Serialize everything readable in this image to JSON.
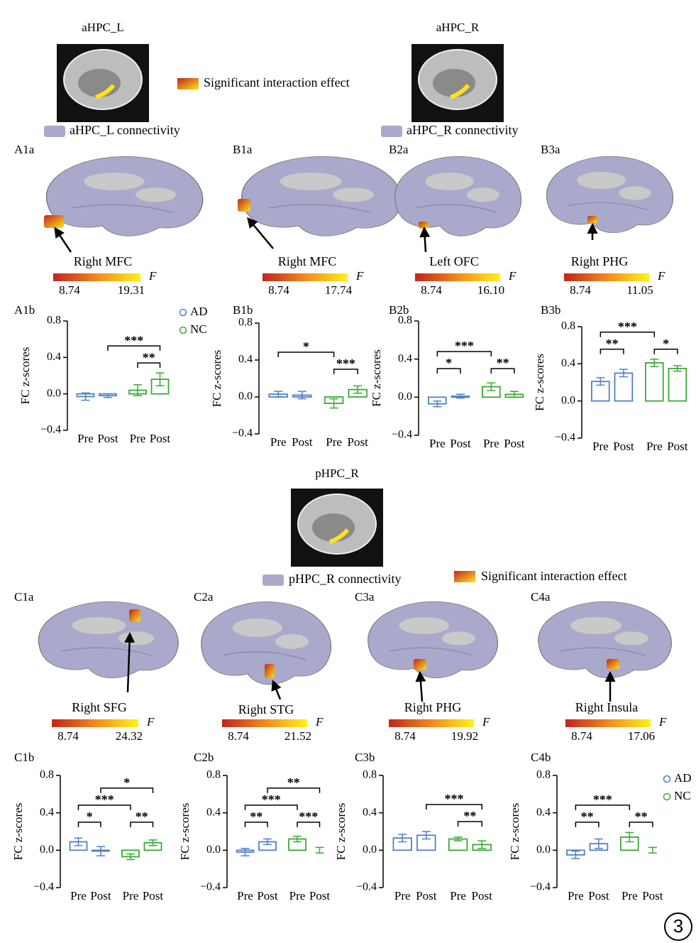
{
  "header": {
    "seeds": [
      "aHPC_L",
      "aHPC_R",
      "pHPC_R"
    ],
    "interaction_legend": [
      "Significant interaction effect",
      "Significant interaction effect"
    ],
    "connectivity_legend": [
      "aHPC_L connectivity",
      "aHPC_R connectivity",
      "pHPC_R connectivity"
    ],
    "figure_number": 3
  },
  "brain_panels": [
    {
      "panel": "A1a",
      "region": "Right MFC",
      "colorbar": {
        "min": 8.74,
        "max": 19.31,
        "label": "F"
      }
    },
    {
      "panel": "B1a",
      "region": "Right MFC",
      "colorbar": {
        "min": 8.74,
        "max": 17.74,
        "label": "F"
      }
    },
    {
      "panel": "B2a",
      "region": "Left OFC",
      "colorbar": {
        "min": 8.74,
        "max": {
          "value": 16.1,
          "label": "16.10"
        },
        "label": "F"
      }
    },
    {
      "panel": "B3a",
      "region": "Right PHG",
      "colorbar": {
        "min": 8.74,
        "max": 11.05,
        "label": "F"
      }
    },
    {
      "panel": "C1a",
      "region": "Right SFG",
      "colorbar": {
        "min": 8.74,
        "max": 24.32,
        "label": "F"
      }
    },
    {
      "panel": "C2a",
      "region": "Right STG",
      "colorbar": {
        "min": 8.74,
        "max": 21.52,
        "label": "F"
      }
    },
    {
      "panel": "C3a",
      "region": "Right PHG",
      "colorbar": {
        "min": 8.74,
        "max": 19.92,
        "label": "F"
      }
    },
    {
      "panel": "C4a",
      "region": "Right Insula",
      "colorbar": {
        "min": 8.74,
        "max": 17.06,
        "label": "F"
      }
    }
  ],
  "chart_data": [
    {
      "type": "bar",
      "panel": "A1b",
      "ylabel": "FC z-scores",
      "categories": [
        "Pre",
        "Post",
        "Pre",
        "Post"
      ],
      "series": [
        {
          "name": "AD",
          "color": "#4f81c7",
          "values": [
            -0.03,
            -0.02,
            null,
            null
          ],
          "errors": [
            0.04,
            0.02,
            null,
            null
          ]
        },
        {
          "name": "NC",
          "color": "#3aa935",
          "values": [
            null,
            null,
            0.04,
            0.16
          ],
          "errors": [
            null,
            null,
            0.06,
            0.07
          ]
        }
      ],
      "ylim": [
        -0.4,
        0.8
      ],
      "yticks": [
        {
          "value": -0.4,
          "label": "−0.4"
        },
        {
          "value": 0,
          "label": "0.0"
        },
        0.4,
        0.8
      ],
      "brackets": [
        {
          "from": 2,
          "to": 3,
          "label": "**"
        },
        {
          "from": 1,
          "to": 3,
          "label": "***"
        }
      ],
      "legend": "right"
    },
    {
      "type": "bar",
      "panel": "B1b",
      "ylabel": "FC z-scores",
      "categories": [
        "Pre",
        "Post",
        "Pre",
        "Post"
      ],
      "series": [
        {
          "color": "#4f81c7",
          "values": [
            0.03,
            0.02,
            null,
            null
          ],
          "errors": [
            0.03,
            0.04,
            null,
            null
          ]
        },
        {
          "color": "#3aa935",
          "values": [
            null,
            null,
            -0.07,
            0.08
          ],
          "errors": [
            null,
            null,
            0.05,
            0.04
          ]
        }
      ],
      "ylim": [
        -0.4,
        0.8
      ],
      "yticks": [
        {
          "value": -0.4,
          "label": "−0.4"
        },
        {
          "value": 0,
          "label": "0.0"
        },
        0.4,
        0.8
      ],
      "brackets": [
        {
          "from": 2,
          "to": 3,
          "label": "***"
        },
        {
          "from": 0,
          "to": 2,
          "label": "*"
        }
      ]
    },
    {
      "type": "bar",
      "panel": "B2b",
      "ylabel": "FC z-scores",
      "categories": [
        "Pre",
        "Post",
        "Pre",
        "Post"
      ],
      "series": [
        {
          "color": "#4f81c7",
          "values": [
            -0.07,
            0.01,
            null,
            null
          ],
          "errors": [
            0.03,
            0.02,
            null,
            null
          ]
        },
        {
          "color": "#3aa935",
          "values": [
            null,
            null,
            0.11,
            0.03
          ],
          "errors": [
            null,
            null,
            0.04,
            0.03
          ]
        }
      ],
      "ylim": [
        -0.4,
        0.8
      ],
      "yticks": [
        {
          "value": -0.4,
          "label": "−0.4"
        },
        {
          "value": 0,
          "label": "0.0"
        },
        0.4,
        0.8
      ],
      "brackets": [
        {
          "from": 0,
          "to": 1,
          "label": "*"
        },
        {
          "from": 2,
          "to": 3,
          "label": "**"
        },
        {
          "from": 0,
          "to": 2,
          "label": "***"
        }
      ]
    },
    {
      "type": "bar",
      "panel": "B3b",
      "ylabel": "FC z-scores",
      "categories": [
        "Pre",
        "Post",
        "Pre",
        "Post"
      ],
      "series": [
        {
          "color": "#4f81c7",
          "values": [
            0.21,
            0.3,
            null,
            null
          ],
          "errors": [
            0.04,
            0.04,
            null,
            null
          ]
        },
        {
          "color": "#3aa935",
          "values": [
            null,
            null,
            0.41,
            0.35
          ],
          "errors": [
            null,
            null,
            0.04,
            0.03
          ]
        }
      ],
      "ylim": [
        -0.4,
        0.8
      ],
      "yticks": [
        {
          "value": -0.4,
          "label": "−0.4"
        },
        {
          "value": 0,
          "label": "0.0"
        },
        0.4,
        0.8
      ],
      "brackets": [
        {
          "from": 0,
          "to": 1,
          "label": "**"
        },
        {
          "from": 2,
          "to": 3,
          "label": "*"
        },
        {
          "from": 0,
          "to": 2,
          "label": "***"
        }
      ]
    },
    {
      "type": "bar",
      "panel": "C1b",
      "ylabel": "FC z-scores",
      "categories": [
        "Pre",
        "Post",
        "Pre",
        "Post"
      ],
      "series": [
        {
          "color": "#4f81c7",
          "values": [
            0.09,
            -0.01,
            null,
            null
          ],
          "errors": [
            0.04,
            0.05,
            null,
            null
          ]
        },
        {
          "color": "#3aa935",
          "values": [
            null,
            null,
            -0.07,
            0.08
          ],
          "errors": [
            null,
            null,
            0.03,
            0.03
          ]
        }
      ],
      "ylim": [
        -0.4,
        0.8
      ],
      "yticks": [
        {
          "value": -0.4,
          "label": "−0.4"
        },
        {
          "value": 0,
          "label": "0.0"
        },
        0.4,
        0.8
      ],
      "brackets": [
        {
          "from": 0,
          "to": 1,
          "label": "*"
        },
        {
          "from": 2,
          "to": 3,
          "label": "**"
        },
        {
          "from": 0,
          "to": 2,
          "label": "***"
        },
        {
          "from": 1,
          "to": 3,
          "label": "*"
        }
      ]
    },
    {
      "type": "bar",
      "panel": "C2b",
      "ylabel": "FC z-scores",
      "categories": [
        "Pre",
        "Post",
        "Pre",
        "Post"
      ],
      "series": [
        {
          "color": "#4f81c7",
          "values": [
            -0.02,
            0.09,
            null,
            null
          ],
          "errors": [
            0.04,
            0.03,
            null,
            null
          ]
        },
        {
          "color": "#3aa935",
          "values": [
            null,
            null,
            0.12,
            0.0
          ],
          "errors": [
            null,
            null,
            0.03,
            0.03
          ]
        }
      ],
      "ylim": [
        -0.4,
        0.8
      ],
      "yticks": [
        {
          "value": -0.4,
          "label": "−0.4"
        },
        {
          "value": 0,
          "label": "0.0"
        },
        0.4,
        0.8
      ],
      "brackets": [
        {
          "from": 0,
          "to": 1,
          "label": "**"
        },
        {
          "from": 2,
          "to": 3,
          "label": "***"
        },
        {
          "from": 0,
          "to": 2,
          "label": "***"
        },
        {
          "from": 1,
          "to": 3,
          "label": "**"
        }
      ]
    },
    {
      "type": "bar",
      "panel": "C3b",
      "ylabel": "FC z-scores",
      "categories": [
        "Pre",
        "Post",
        "Pre",
        "Post"
      ],
      "series": [
        {
          "color": "#4f81c7",
          "values": [
            0.13,
            0.16,
            null,
            null
          ],
          "errors": [
            0.04,
            0.04,
            null,
            null
          ]
        },
        {
          "color": "#3aa935",
          "values": [
            null,
            null,
            0.12,
            0.06
          ],
          "errors": [
            null,
            null,
            0.02,
            0.04
          ]
        }
      ],
      "ylim": [
        -0.4,
        0.8
      ],
      "yticks": [
        {
          "value": -0.4,
          "label": "−0.4"
        },
        {
          "value": 0,
          "label": "0.0"
        },
        0.4,
        0.8
      ],
      "brackets": [
        {
          "from": 2,
          "to": 3,
          "label": "**"
        },
        {
          "from": 1,
          "to": 3,
          "label": "***"
        }
      ]
    },
    {
      "type": "bar",
      "panel": "C4b",
      "ylabel": "FC z-scores",
      "categories": [
        "Pre",
        "Post",
        "Pre",
        "Post"
      ],
      "series": [
        {
          "name": "AD",
          "color": "#4f81c7",
          "values": [
            -0.05,
            0.07,
            null,
            null
          ],
          "errors": [
            0.04,
            0.05,
            null,
            null
          ]
        },
        {
          "name": "NC",
          "color": "#3aa935",
          "values": [
            null,
            null,
            0.14,
            0.0
          ],
          "errors": [
            null,
            null,
            0.05,
            0.03
          ]
        }
      ],
      "ylim": [
        -0.4,
        0.8
      ],
      "yticks": [
        {
          "value": -0.4,
          "label": "−0.4"
        },
        {
          "value": 0,
          "label": "0.0"
        },
        0.4,
        0.8
      ],
      "brackets": [
        {
          "from": 0,
          "to": 1,
          "label": "**"
        },
        {
          "from": 2,
          "to": 3,
          "label": "**"
        },
        {
          "from": 0,
          "to": 2,
          "label": "***"
        }
      ],
      "legend": "right"
    }
  ]
}
